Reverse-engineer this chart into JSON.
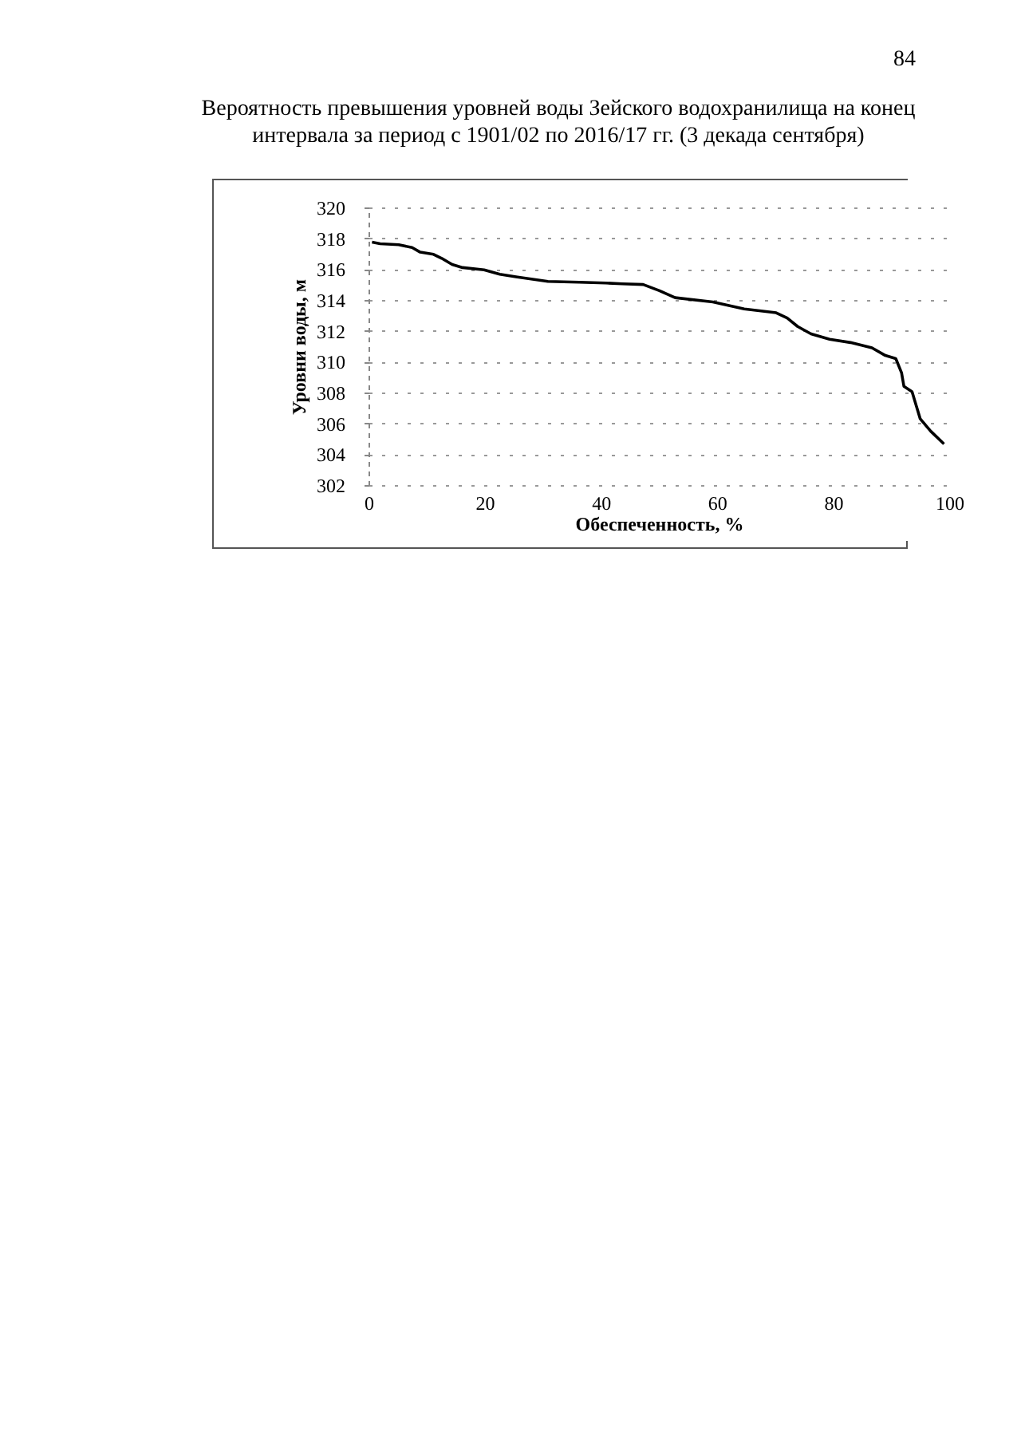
{
  "chart_data": {
    "type": "line",
    "title": "Вероятность превышения уровней воды Зейского водохранилища на конец интервала за период с 1901/02 по 2016/17 гг. (3 декада сентября)",
    "xlabel": "Обеспеченность, %",
    "ylabel": "Уровни воды, м",
    "annotations": [
      "84"
    ],
    "x": [
      0.6,
      2.0,
      5.2,
      7.5,
      8.9,
      11.2,
      12.6,
      14.4,
      16.2,
      19.9,
      22.6,
      25.4,
      30.9,
      36.3,
      40.9,
      43.7,
      47.3,
      50.1,
      52.8,
      59.3,
      64.7,
      70.2,
      72.1,
      73.9,
      76.2,
      79.4,
      83.0,
      86.7,
      89.0,
      90.8,
      91.8,
      92.2,
      93.6,
      95.0,
      96.8,
      99.1
    ],
    "series": [
      {
        "color": "#000000",
        "values": [
          317.75,
          317.65,
          317.58,
          317.4,
          317.1,
          316.96,
          316.7,
          316.3,
          316.1,
          315.95,
          315.67,
          315.5,
          315.2,
          315.15,
          315.1,
          315.05,
          315.0,
          314.6,
          314.15,
          313.87,
          313.42,
          313.17,
          312.83,
          312.28,
          311.8,
          311.45,
          311.24,
          310.9,
          310.4,
          310.2,
          309.27,
          308.4,
          308.05,
          306.3,
          305.5,
          304.66
        ]
      }
    ],
    "xlim": [
      0,
      100
    ],
    "xticks": [
      0,
      20,
      40,
      60,
      80,
      100
    ],
    "ylim": [
      302,
      320
    ],
    "yticks": [
      302,
      304,
      306,
      308,
      310,
      312,
      314,
      316,
      318,
      320
    ],
    "grid": "y",
    "marker": "none",
    "line_style": "solid",
    "legend": false
  }
}
